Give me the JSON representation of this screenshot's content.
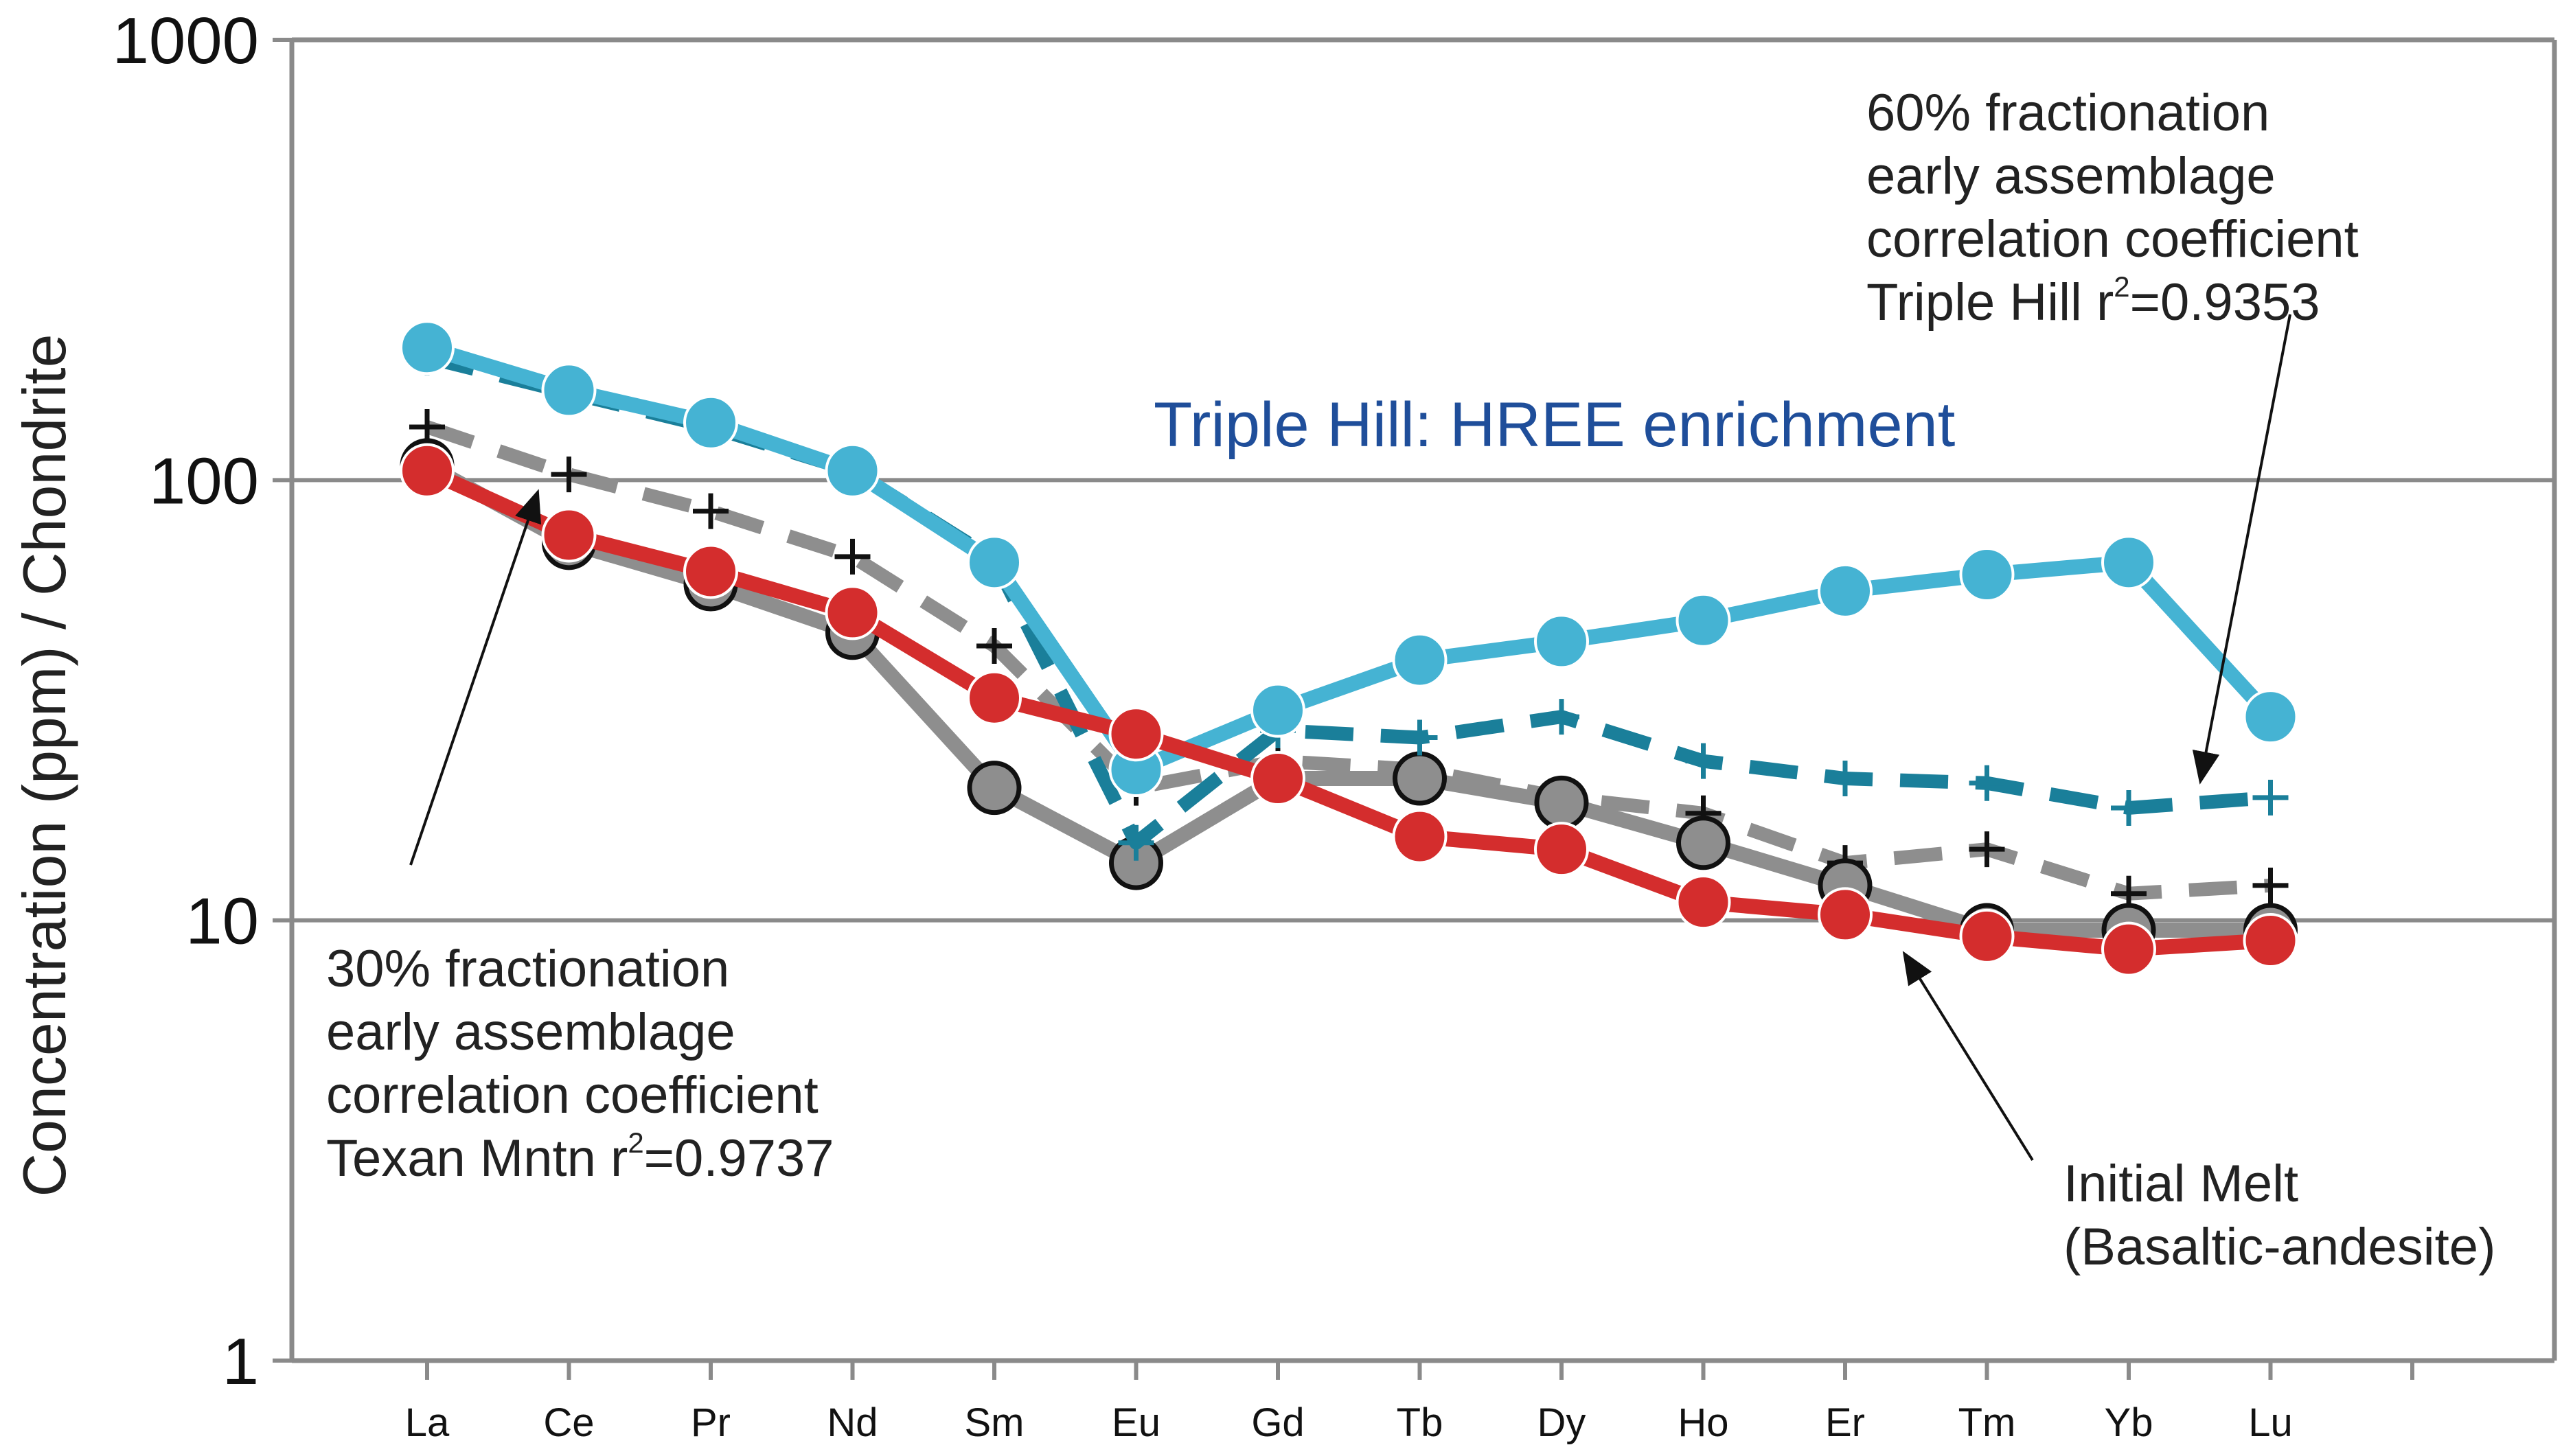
{
  "chart_data": {
    "type": "line",
    "yscale": "log",
    "ylim": [
      1,
      1000
    ],
    "yticks": [
      1,
      10,
      100,
      1000
    ],
    "ytick_labels": [
      "1",
      "10",
      "100",
      "1000"
    ],
    "ylabel": "Concentration (ppm) / Chondrite",
    "xlabel": "",
    "grid": "horizontal",
    "categories": [
      "La",
      "Ce",
      "Pr",
      "Nd",
      "Sm",
      "Eu",
      "Gd",
      "Tb",
      "Dy",
      "Ho",
      "Er",
      "Tm",
      "Yb",
      "Lu"
    ],
    "series": [
      {
        "name": "Triple Hill (HREE enriched)",
        "style": "solid-circle",
        "color": "#45b3d3",
        "values": [
          200,
          160,
          135,
          105,
          65,
          22,
          30,
          39,
          43,
          48,
          56,
          61,
          65,
          29
        ]
      },
      {
        "name": "60% fractionation early assemblage model (Triple Hill)",
        "style": "dashed-plus",
        "color": "#1a7f9a",
        "values": [
          190,
          158,
          132,
          105,
          66,
          15,
          27,
          26,
          29,
          23,
          21,
          20.5,
          18,
          19
        ]
      },
      {
        "name": "Texan Mntn",
        "style": "solid-circle-outlined",
        "color": "#8e8e8e",
        "values": [
          108,
          72,
          58,
          45,
          20,
          13.5,
          21,
          21,
          18.5,
          15,
          12,
          9.5,
          9.5,
          9.5
        ]
      },
      {
        "name": "30% fractionation early assemblage model (Texan Mntn)",
        "style": "dashed-plus",
        "color": "#8e8e8e",
        "values": [
          132,
          103,
          85,
          67,
          42,
          20,
          23,
          22,
          19,
          17.5,
          13.5,
          14.5,
          11.5,
          12
        ]
      },
      {
        "name": "Initial Melt (Basaltic-andesite)",
        "style": "solid-circle",
        "color": "#d42d2d",
        "values": [
          105,
          75,
          62,
          50,
          32,
          26.5,
          21,
          15.5,
          14.5,
          11,
          10.3,
          9.2,
          8.6,
          9
        ]
      }
    ],
    "annotations": {
      "triple_hill_title": "Triple Hill: HREE enrichment",
      "sixty_pct": {
        "line1": "60% fractionation",
        "line2": "early assemblage",
        "line3": "correlation coefficient",
        "line4_prefix": "Triple Hill r",
        "line4_sup": "2",
        "line4_suffix": "=0.9353"
      },
      "thirty_pct": {
        "line1": "30% fractionation",
        "line2": "early assemblage",
        "line3": "correlation coefficient",
        "line4_prefix": "Texan Mntn r",
        "line4_sup": "2",
        "line4_suffix": "=0.9737"
      },
      "initial_melt": {
        "line1": "Initial Melt",
        "line2": "(Basaltic-andesite)"
      }
    }
  }
}
